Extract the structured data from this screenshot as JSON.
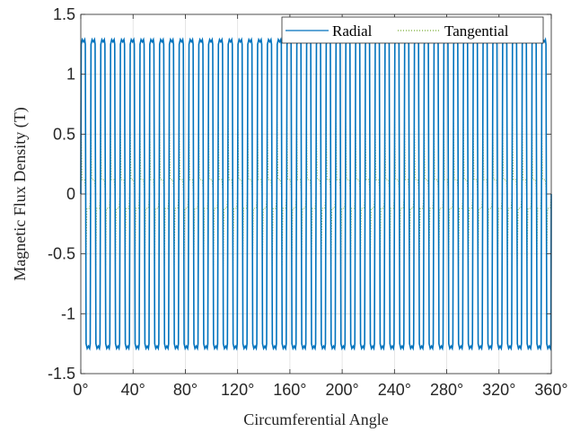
{
  "chart_data": {
    "type": "line",
    "title": "",
    "xlabel": "Circumferential Angle",
    "ylabel": "Magnetic Flux Density (T)",
    "xlim": [
      0,
      360
    ],
    "ylim": [
      -1.5,
      1.5
    ],
    "grid": true,
    "legend_position": "top-right",
    "x_ticks": [
      0,
      40,
      80,
      120,
      160,
      200,
      240,
      280,
      320,
      360
    ],
    "x_tick_labels": [
      "0°",
      "40°",
      "80°",
      "120°",
      "160°",
      "200°",
      "240°",
      "280°",
      "320°",
      "360°"
    ],
    "y_ticks": [
      -1.5,
      -1,
      -0.5,
      0,
      0.5,
      1,
      1.5
    ],
    "y_tick_labels": [
      "-1.5",
      "-1",
      "-0.5",
      "0",
      "0.5",
      "1",
      "1.5"
    ],
    "periods": 48,
    "series": [
      {
        "name": "Radial",
        "color": "#0072BD",
        "style": "solid",
        "waveform": "square",
        "peak_positive": 1.29,
        "peak_negative": -1.29,
        "ripple": 0.04
      },
      {
        "name": "Tangential",
        "color": "#77AC30",
        "style": "dotted",
        "waveform": "spike",
        "peak_positive": 0.6,
        "peak_negative": -0.6,
        "baseline": 0.12
      }
    ]
  }
}
